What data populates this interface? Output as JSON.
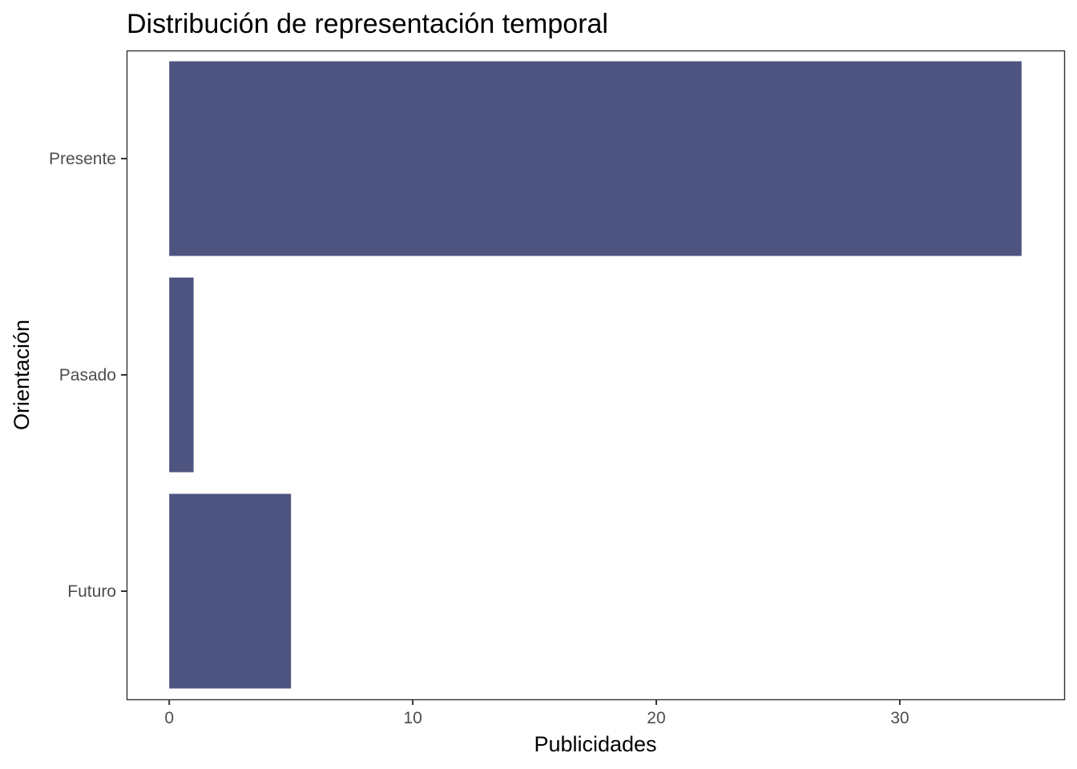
{
  "chart_data": {
    "type": "bar",
    "orientation": "horizontal",
    "title": "Distribución de representación temporal",
    "xlabel": "Publicidades",
    "ylabel": "Orientación",
    "categories": [
      "Presente",
      "Pasado",
      "Futuro"
    ],
    "values": [
      35,
      1,
      5
    ],
    "xlim": [
      -1.75,
      36.75
    ],
    "xticks": [
      0,
      10,
      20,
      30
    ],
    "grid": false,
    "bar_color": "#4d5480"
  }
}
